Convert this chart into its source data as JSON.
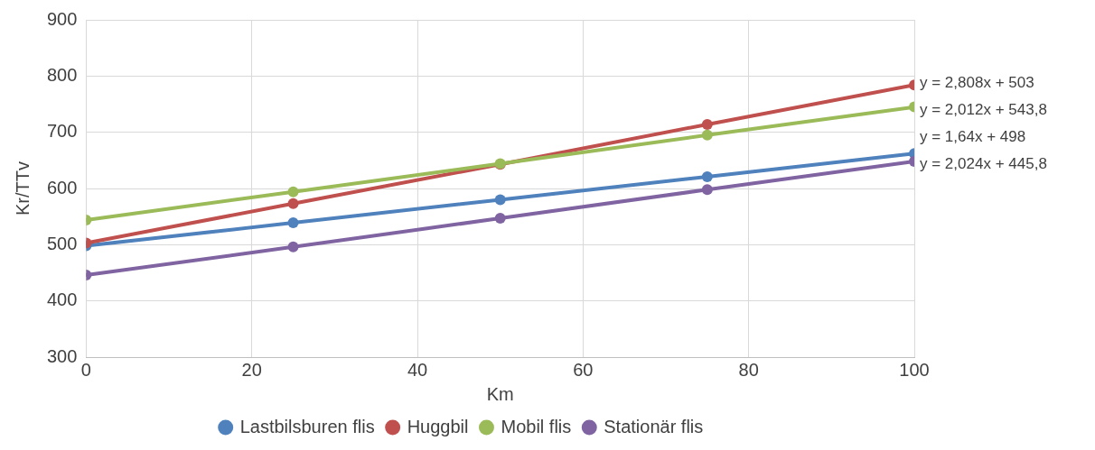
{
  "chart_data": {
    "type": "line",
    "xlabel": "Km",
    "ylabel": "Kr/TTv",
    "x": [
      0,
      25,
      50,
      75,
      100
    ],
    "series": [
      {
        "name": "Lastbilsburen flis",
        "color": "#4f81bd",
        "values": [
          498,
          539,
          580,
          621,
          662
        ]
      },
      {
        "name": "Huggbil",
        "color": "#c0504d",
        "values": [
          503,
          573,
          643,
          714,
          784
        ]
      },
      {
        "name": "Mobil flis",
        "color": "#9bbb59",
        "values": [
          544,
          594,
          644,
          695,
          745
        ]
      },
      {
        "name": "Stationär flis",
        "color": "#8064a2",
        "values": [
          446,
          496,
          547,
          598,
          648
        ]
      }
    ],
    "xlim": [
      0,
      100
    ],
    "xticks": [
      0,
      20,
      40,
      60,
      80,
      100
    ],
    "ylim": [
      300,
      900
    ],
    "yticks": [
      300,
      400,
      500,
      600,
      700,
      800,
      900
    ],
    "grid": true,
    "legend": "bottom",
    "marker": "circle",
    "line_style": "solid",
    "annotations": [
      "y = 2,808x + 503",
      "y = 2,012x + 543,8",
      "y = 1,64x + 498",
      "y = 2,024x + 445,8"
    ]
  }
}
